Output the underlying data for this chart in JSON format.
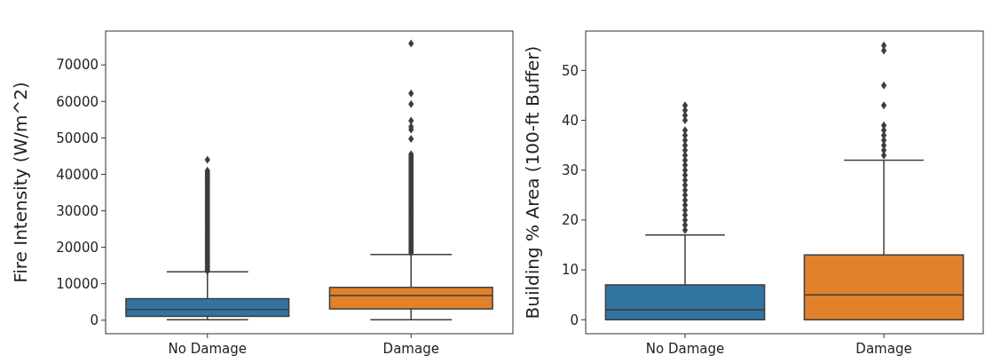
{
  "chart_data": [
    {
      "type": "box",
      "ylabel": "Fire Intensity (W/m^2)",
      "categories": [
        "No Damage",
        "Damage"
      ],
      "colors": [
        "#3274a1",
        "#e1812c"
      ],
      "ylim": [
        -3700,
        79300
      ],
      "yticks": [
        0,
        10000,
        20000,
        30000,
        40000,
        50000,
        60000,
        70000
      ],
      "marker": "diamond",
      "boxes": [
        {
          "low": 160,
          "q1": 1060,
          "median": 2930,
          "q3": 5900,
          "high": 13300,
          "outliers": [
            13500,
            14000,
            14500,
            15000,
            15500,
            16000,
            16500,
            17000,
            17500,
            18000,
            18500,
            19000,
            19500,
            20000,
            20500,
            21000,
            21500,
            22000,
            22500,
            23000,
            23500,
            24000,
            24500,
            25000,
            25500,
            26000,
            26500,
            27000,
            27500,
            28000,
            28500,
            29000,
            29500,
            30000,
            30500,
            31000,
            31500,
            32000,
            32500,
            33000,
            33500,
            34000,
            34500,
            35000,
            35500,
            36000,
            36500,
            37000,
            37500,
            38000,
            38500,
            39000,
            39500,
            40000,
            40500,
            41000,
            44000
          ]
        },
        {
          "low": 160,
          "q1": 3100,
          "median": 6750,
          "q3": 9000,
          "high": 18000,
          "outliers": [
            18500,
            19000,
            19500,
            20000,
            20500,
            21000,
            21500,
            22000,
            22500,
            23000,
            23500,
            24000,
            24500,
            25000,
            25500,
            26000,
            26500,
            27000,
            27500,
            28000,
            28500,
            29000,
            29500,
            30000,
            30500,
            31000,
            31500,
            32000,
            32500,
            33000,
            33500,
            34000,
            34500,
            35000,
            35500,
            36000,
            36500,
            37000,
            37500,
            38000,
            38500,
            39000,
            39500,
            40000,
            40500,
            41000,
            41500,
            42000,
            42500,
            43000,
            43500,
            44000,
            44500,
            45000,
            45500,
            49700,
            52300,
            53100,
            54700,
            59300,
            62200,
            75900
          ]
        }
      ]
    },
    {
      "type": "box",
      "ylabel": "Building % Area (100-ft Buffer)",
      "categories": [
        "No Damage",
        "Damage"
      ],
      "colors": [
        "#3274a1",
        "#e1812c"
      ],
      "ylim": [
        -2.8,
        57.9
      ],
      "yticks": [
        0,
        10,
        20,
        30,
        40,
        50
      ],
      "marker": "diamond",
      "boxes": [
        {
          "low": 0,
          "q1": 0,
          "median": 2,
          "q3": 7,
          "high": 17,
          "outliers": [
            18,
            19,
            20,
            21,
            22,
            23,
            24,
            25,
            26,
            27,
            28,
            29,
            30,
            31,
            32,
            33,
            34,
            35,
            36,
            37,
            38,
            40,
            41,
            42,
            43
          ]
        },
        {
          "low": 0,
          "q1": 0,
          "median": 5,
          "q3": 13,
          "high": 32,
          "outliers": [
            33,
            34,
            35,
            36,
            37,
            38,
            39,
            43,
            47,
            54,
            55
          ]
        }
      ]
    }
  ]
}
